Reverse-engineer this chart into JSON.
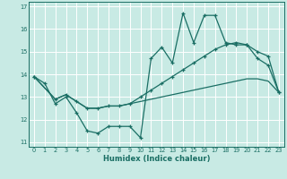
{
  "xlabel": "Humidex (Indice chaleur)",
  "xlim": [
    -0.5,
    23.5
  ],
  "ylim": [
    10.8,
    17.2
  ],
  "yticks": [
    11,
    12,
    13,
    14,
    15,
    16,
    17
  ],
  "xticks": [
    0,
    1,
    2,
    3,
    4,
    5,
    6,
    7,
    8,
    9,
    10,
    11,
    12,
    13,
    14,
    15,
    16,
    17,
    18,
    19,
    20,
    21,
    22,
    23
  ],
  "bg_color": "#c8eae4",
  "grid_color": "#ffffff",
  "line_color": "#1a6e64",
  "line1_x": [
    0,
    1,
    2,
    3,
    4,
    5,
    6,
    7,
    8,
    9,
    10,
    11,
    12,
    13,
    14,
    15,
    16,
    17,
    18,
    19,
    20,
    21,
    22,
    23
  ],
  "line1_y": [
    13.9,
    13.6,
    12.7,
    13.0,
    12.3,
    11.5,
    11.4,
    11.7,
    11.7,
    11.7,
    11.2,
    14.7,
    15.2,
    14.5,
    16.7,
    15.4,
    16.6,
    16.6,
    15.4,
    15.3,
    15.3,
    14.7,
    14.4,
    13.2
  ],
  "line2_x": [
    0,
    2,
    3,
    4,
    5,
    6,
    7,
    8,
    9,
    10,
    11,
    12,
    13,
    14,
    15,
    16,
    17,
    18,
    19,
    20,
    21,
    22,
    23
  ],
  "line2_y": [
    13.9,
    12.9,
    13.1,
    12.8,
    12.5,
    12.5,
    12.6,
    12.6,
    12.7,
    13.0,
    13.3,
    13.6,
    13.9,
    14.2,
    14.5,
    14.8,
    15.1,
    15.3,
    15.4,
    15.3,
    15.0,
    14.8,
    13.2
  ],
  "line3_x": [
    0,
    2,
    3,
    5,
    6,
    7,
    8,
    9,
    10,
    11,
    12,
    13,
    14,
    15,
    16,
    17,
    18,
    19,
    20,
    21,
    22,
    23
  ],
  "line3_y": [
    13.9,
    12.9,
    13.1,
    12.5,
    12.5,
    12.6,
    12.6,
    12.7,
    12.8,
    12.9,
    13.0,
    13.1,
    13.2,
    13.3,
    13.4,
    13.5,
    13.6,
    13.7,
    13.8,
    13.8,
    13.7,
    13.2
  ]
}
